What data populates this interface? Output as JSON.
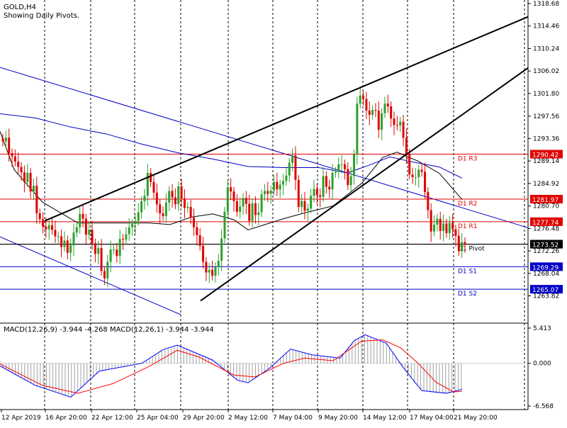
{
  "header": {
    "symbol": "GOLD,H4",
    "subtitle": "Showing Daily Pivots."
  },
  "colors": {
    "bull_candle": "#2ca02c",
    "bear_candle": "#e00000",
    "pivot_resistance": "#e00000",
    "pivot_support": "#0000c8",
    "pivot_line": "#000000",
    "channel": "#0000c8",
    "trendline": "#000000",
    "macd_line": "#0000ff",
    "signal_line": "#ff0000",
    "histogram": "#a0a0a0"
  },
  "chart_data": [
    {
      "type": "candlestick",
      "symbol": "GOLD",
      "timeframe": "H4",
      "ylim": [
        1259.5,
        1318.68
      ],
      "y_ticks": [
        1318.68,
        1314.46,
        1310.24,
        1306.02,
        1301.8,
        1297.56,
        1293.36,
        1289.14,
        1284.92,
        1280.7,
        1276.48,
        1272.26,
        1268.04,
        1263.82
      ],
      "x_tick_labels": [
        "12 Apr 2019",
        "16 Apr 20:00",
        "22 Apr 12:00",
        "25 Apr 04:00",
        "29 Apr 20:00",
        "2 May 12:00",
        "7 May 04:00",
        "9 May 20:00",
        "14 May 12:00",
        "17 May 04:00",
        "21 May 20:00"
      ],
      "grid": "vertical dashed at date ticks",
      "pivots": [
        {
          "name": "D1 R3",
          "value": 1290.42,
          "role": "resistance"
        },
        {
          "name": "D1 R2",
          "value": 1281.97,
          "role": "resistance"
        },
        {
          "name": "D1 R1",
          "value": 1277.74,
          "role": "resistance"
        },
        {
          "name": "D1 Pivot",
          "value": 1273.52,
          "role": "pivot"
        },
        {
          "name": "D1 S1",
          "value": 1269.29,
          "role": "support"
        },
        {
          "name": "D1 S2",
          "value": 1265.07,
          "role": "support"
        }
      ],
      "close_path": [
        1292.8,
        1293.5,
        1290.6,
        1290.0,
        1289.0,
        1288.0,
        1287.0,
        1285.2,
        1286.9,
        1283.4,
        1284.5,
        1279.3,
        1278.2,
        1276.8,
        1276.3,
        1277.1,
        1276.2,
        1275.0,
        1275.0,
        1273.0,
        1274.2,
        1271.9,
        1273.3,
        1275.7,
        1276.7,
        1279.2,
        1278.3,
        1275.3,
        1276.2,
        1273.7,
        1271.7,
        1272.8,
        1268.5,
        1267.1,
        1270.2,
        1272.5,
        1272.5,
        1271.3,
        1274.5,
        1274.4,
        1275.4,
        1276.7,
        1277.3,
        1277.9,
        1279.5,
        1281.6,
        1282.6,
        1286.9,
        1285.2,
        1283.2,
        1281.0,
        1279.3,
        1278.8,
        1281.3,
        1283.5,
        1282.3,
        1281.0,
        1284.4,
        1282.1,
        1280.3,
        1280.5,
        1278.5,
        1276.7,
        1275.2,
        1273.2,
        1270.2,
        1268.2,
        1268.7,
        1267.6,
        1269.2,
        1270.4,
        1274.6,
        1279.6,
        1284.2,
        1283.4,
        1281.6,
        1279.6,
        1280.6,
        1282.2,
        1281.1,
        1277.9,
        1281.2,
        1279.0,
        1279.5,
        1282.9,
        1283.5,
        1283.0,
        1283.6,
        1285.2,
        1283.8,
        1284.7,
        1285.4,
        1286.4,
        1288.8,
        1290.2,
        1285.6,
        1280.5,
        1281.6,
        1279.8,
        1280.2,
        1282.6,
        1283.9,
        1282.7,
        1282.4,
        1286.3,
        1284.3,
        1283.8,
        1286.9,
        1287.1,
        1288.5,
        1288.5,
        1287.6,
        1284.6,
        1286.3,
        1290.4,
        1299.9,
        1301.4,
        1300.8,
        1298.6,
        1297.8,
        1298.7,
        1298.6,
        1295.0,
        1298.1,
        1299.9,
        1299.4,
        1297.1,
        1295.9,
        1295.8,
        1296.5,
        1293.5,
        1290.5,
        1286.6,
        1286.1,
        1286.1,
        1287.5,
        1287.1,
        1283.3,
        1279.9,
        1275.9,
        1277.2,
        1278.3,
        1276.0,
        1277.4,
        1275.6,
        1277.5,
        1276.3,
        1275.1,
        1272.2,
        1273.9,
        1273.5
      ],
      "moving_averages": [
        {
          "color": "#000000",
          "points": [
            [
              0,
              1294.7
            ],
            [
              20,
              1287.5
            ],
            [
              60,
              1281.4
            ],
            [
              110,
              1277.5
            ],
            [
              160,
              1277.5
            ],
            [
              210,
              1277.5
            ],
            [
              240,
              1277.2
            ],
            [
              270,
              1278.6
            ],
            [
              300,
              1279.2
            ],
            [
              330,
              1278.1
            ],
            [
              350,
              1276.2
            ],
            [
              400,
              1278.3
            ],
            [
              430,
              1279.4
            ],
            [
              470,
              1280.7
            ],
            [
              510,
              1284.9
            ],
            [
              540,
              1289.8
            ],
            [
              560,
              1290.8
            ],
            [
              590,
              1289.1
            ],
            [
              620,
              1286.8
            ],
            [
              652,
              1281.9
            ]
          ]
        },
        {
          "color": "#0000c8",
          "points": [
            [
              0,
              1298.0
            ],
            [
              50,
              1297.2
            ],
            [
              100,
              1295.5
            ],
            [
              150,
              1294.2
            ],
            [
              200,
              1292.3
            ],
            [
              250,
              1290.7
            ],
            [
              300,
              1289.5
            ],
            [
              350,
              1288.1
            ],
            [
              400,
              1287.9
            ],
            [
              450,
              1287.9
            ],
            [
              490,
              1286.9
            ],
            [
              520,
              1288.3
            ],
            [
              550,
              1289.9
            ],
            [
              580,
              1289.0
            ],
            [
              620,
              1288.0
            ],
            [
              652,
              1285.9
            ]
          ]
        }
      ],
      "trendlines": [
        {
          "color": "#000000",
          "from": [
            "16 Apr",
            1277.9
          ],
          "to": [
            "22 May",
            1316.2
          ]
        },
        {
          "color": "#000000",
          "from": [
            "30 Apr",
            1262.9
          ],
          "to": [
            "22 May",
            1306.6
          ]
        }
      ],
      "channel": {
        "color": "#0000c8",
        "lines": [
          {
            "from": [
              "12 Apr",
              1306.7
            ],
            "to": [
              "22 May",
              1276.6
            ]
          },
          {
            "from": [
              "12 Apr",
              1274.9
            ],
            "to": [
              "29 Apr",
              1260.3
            ]
          }
        ]
      },
      "last_price": 1273.52
    },
    {
      "type": "histogram+line",
      "title": "MACD(12,26,9) -3.944 -4.268 MACD(12,26,1) -3.944 -3.944",
      "ylim": [
        -6.568,
        5.413
      ],
      "y_ticks": [
        5.413,
        0.0,
        -6.568
      ],
      "y_tick_labels": [
        "5.413",
        "0.000",
        "-6.568"
      ],
      "macd_line": [
        [
          0,
          -0.4
        ],
        [
          50,
          -3.4
        ],
        [
          100,
          -5.2
        ],
        [
          140,
          -1.2
        ],
        [
          200,
          0.0
        ],
        [
          230,
          2.1
        ],
        [
          250,
          2.8
        ],
        [
          300,
          0.5
        ],
        [
          335,
          -2.6
        ],
        [
          350,
          -3.0
        ],
        [
          380,
          -0.8
        ],
        [
          410,
          2.2
        ],
        [
          440,
          1.3
        ],
        [
          480,
          0.8
        ],
        [
          500,
          3.5
        ],
        [
          515,
          4.4
        ],
        [
          545,
          3.1
        ],
        [
          570,
          -0.8
        ],
        [
          595,
          -4.2
        ],
        [
          630,
          -4.6
        ],
        [
          652,
          -4.0
        ]
      ],
      "signal_line": [
        [
          0,
          -0.1
        ],
        [
          60,
          -3.4
        ],
        [
          110,
          -4.6
        ],
        [
          160,
          -3.1
        ],
        [
          210,
          -0.5
        ],
        [
          250,
          2.0
        ],
        [
          280,
          1.0
        ],
        [
          330,
          -1.8
        ],
        [
          360,
          -2.1
        ],
        [
          400,
          0.0
        ],
        [
          430,
          0.8
        ],
        [
          470,
          0.4
        ],
        [
          510,
          3.4
        ],
        [
          540,
          3.6
        ],
        [
          565,
          2.4
        ],
        [
          590,
          0.0
        ],
        [
          615,
          -2.9
        ],
        [
          640,
          -4.4
        ],
        [
          652,
          -4.3
        ]
      ]
    }
  ],
  "macd_panel": {
    "label": "MACD(12,26,9) -3.944 -4.268 MACD(12,26,1) -3.944 -3.944"
  }
}
